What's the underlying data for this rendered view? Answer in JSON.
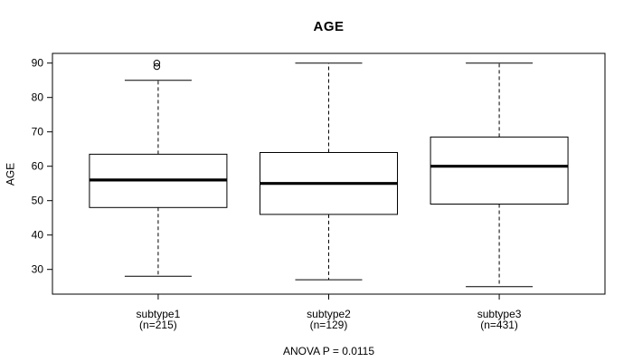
{
  "chart_data": {
    "type": "boxplot",
    "title": "AGE",
    "ylabel": "AGE",
    "xlabel": "",
    "footer_annotation": "ANOVA P = 0.0115",
    "y_ticks": [
      30,
      40,
      50,
      60,
      70,
      80,
      90
    ],
    "ylim": [
      23,
      93
    ],
    "grid": false,
    "legend": null,
    "categories": [
      "subtype1",
      "subtype2",
      "subtype3"
    ],
    "groups": [
      {
        "label": "subtype1",
        "count_label": "(n=215)",
        "n": 215,
        "whisker_low": 28,
        "q1": 48,
        "median": 56,
        "q3": 63.5,
        "whisker_high": 85,
        "outliers": [
          89,
          90
        ]
      },
      {
        "label": "subtype2",
        "count_label": "(n=129)",
        "n": 129,
        "whisker_low": 27,
        "q1": 46,
        "median": 55,
        "q3": 64,
        "whisker_high": 90,
        "outliers": []
      },
      {
        "label": "subtype3",
        "count_label": "(n=431)",
        "n": 431,
        "whisker_low": 25,
        "q1": 49,
        "median": 60,
        "q3": 68.5,
        "whisker_high": 90,
        "outliers": []
      }
    ],
    "colors": {
      "stroke": "#000000",
      "text": "#000000",
      "background": "#ffffff"
    }
  }
}
